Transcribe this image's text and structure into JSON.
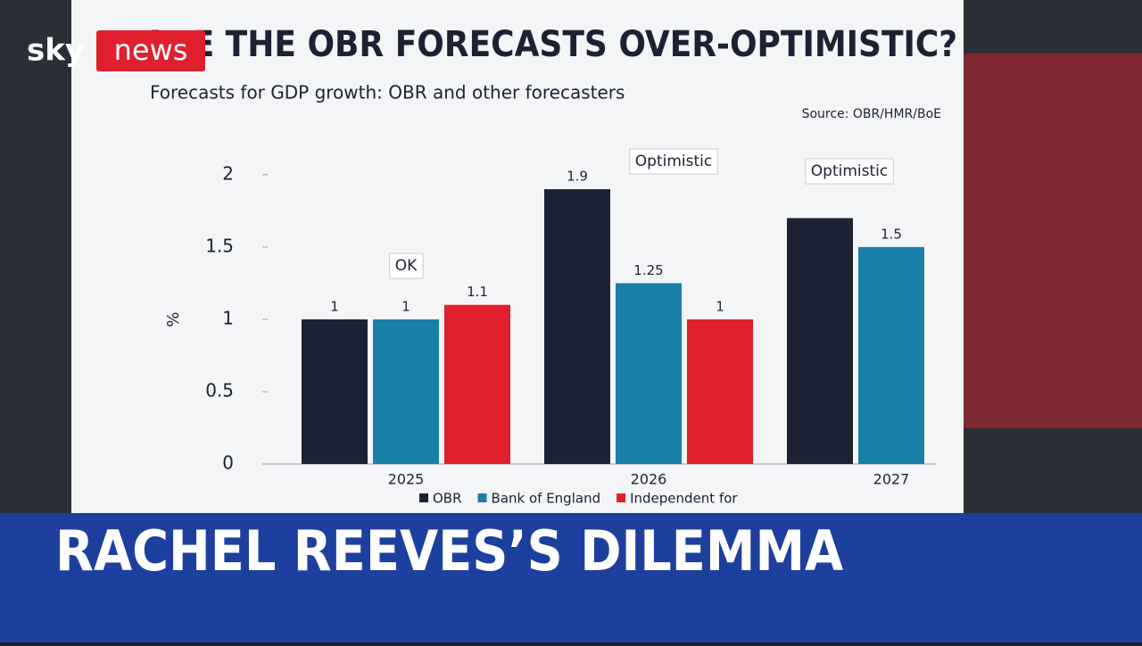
{
  "logo": {
    "left": "sky",
    "right": "news"
  },
  "headline": "RACHEL REEVES’S DILEMMA",
  "chart_data": {
    "type": "bar",
    "title": "ARE THE OBR FORECASTS OVER-OPTIMISTIC?",
    "subtitle": "Forecasts for GDP growth: OBR and other forecasters",
    "source": "Source: OBR/HMR/BoE",
    "y_label": "%",
    "annotations": [
      "OK",
      "Optimistic",
      "Optimistic"
    ],
    "categories": [
      "2025",
      "2026",
      "2027"
    ],
    "series": [
      {
        "name": "OBR",
        "color": "#1c2233",
        "values": [
          1,
          1.9,
          1.7
        ]
      },
      {
        "name": "Bank of England",
        "color": "#1a7fa8",
        "values": [
          1,
          1.25,
          1.5
        ]
      },
      {
        "name": "Independent for",
        "color": "#e0202e",
        "values": [
          1.1,
          1,
          null
        ]
      }
    ],
    "ylim": [
      0,
      2.2
    ],
    "yticks": [
      0,
      0.5,
      1,
      1.5,
      2
    ],
    "grid": false
  }
}
